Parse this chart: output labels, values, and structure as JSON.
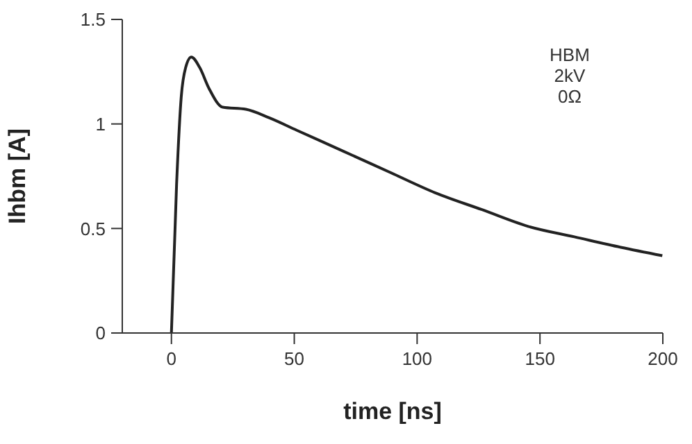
{
  "chart_data": {
    "type": "line",
    "xlabel": "time [ns]",
    "ylabel": "Ihbm  [A]",
    "annotations": [
      "HBM",
      "2kV",
      "0Ω"
    ],
    "x": [
      0,
      2.1,
      4,
      5.8,
      8.1,
      11.5,
      15.3,
      20.9,
      30.3,
      39.7,
      51,
      69.9,
      88.7,
      107.5,
      126.4,
      145.2,
      164,
      182.9,
      199.8
    ],
    "series": [
      {
        "color": "#222222",
        "values": [
          0,
          0.71,
          1.13,
          1.27,
          1.32,
          1.27,
          1.17,
          1.08,
          1.07,
          1.03,
          0.97,
          0.87,
          0.77,
          0.67,
          0.59,
          0.51,
          0.46,
          0.41,
          0.37
        ]
      }
    ],
    "xlim": [
      -20,
      200
    ],
    "xticks": [
      0,
      50,
      100,
      150,
      200
    ],
    "ylim": [
      0,
      1.5
    ],
    "yticks": [
      0,
      0.5,
      1,
      1.5
    ],
    "grid": false,
    "legend": false,
    "marker": "none",
    "line_style": "solid"
  }
}
